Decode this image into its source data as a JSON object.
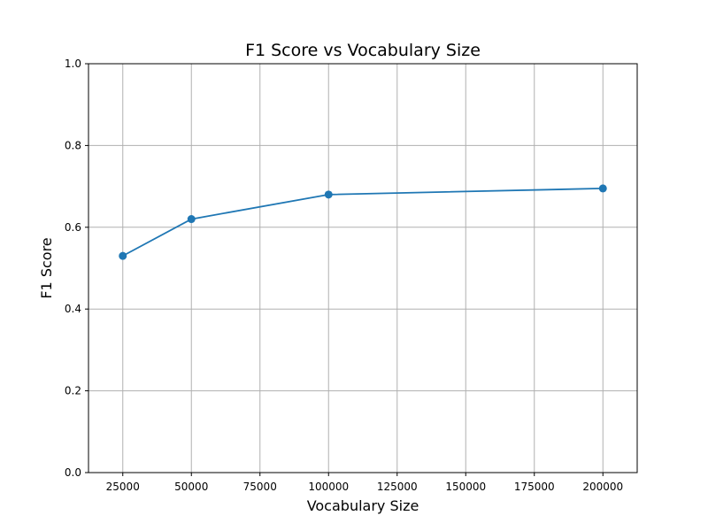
{
  "chart_data": {
    "type": "line",
    "title": "F1 Score vs Vocabulary Size",
    "xlabel": "Vocabulary Size",
    "ylabel": "F1 Score",
    "xlim": [
      12500,
      212500
    ],
    "ylim": [
      0,
      1
    ],
    "xticks": [
      25000,
      50000,
      75000,
      100000,
      125000,
      150000,
      175000,
      200000
    ],
    "yticks": [
      0.0,
      0.2,
      0.4,
      0.6,
      0.8,
      1.0
    ],
    "ytick_labels": [
      "0.0",
      "0.2",
      "0.4",
      "0.6",
      "0.8",
      "1.0"
    ],
    "grid": true,
    "series": [
      {
        "color": "#1f77b4",
        "marker": "circle",
        "x": [
          25000,
          50000,
          100000,
          200000
        ],
        "y": [
          0.53,
          0.62,
          0.68,
          0.695
        ]
      }
    ]
  }
}
